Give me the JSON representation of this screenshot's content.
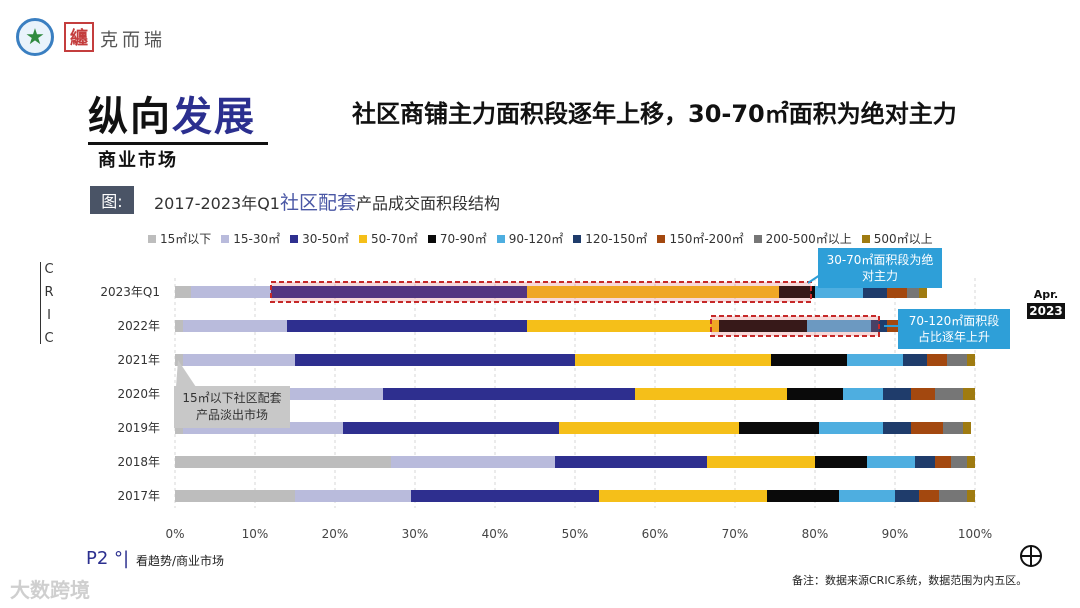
{
  "brand": {
    "logo_text": "纏",
    "name": "克而瑞"
  },
  "title": {
    "part1": "纵向",
    "part2": "发展",
    "subtitle": "商业市场"
  },
  "headline": "社区商铺主力面积段逐年上移，30-70㎡面积为绝对主力",
  "figure": {
    "label": "图:",
    "title_prefix": "2017-2023年Q1",
    "title_highlight": "社区配套",
    "title_suffix": "产品成交面积段结构"
  },
  "side_text": {
    "cric": [
      "C",
      "R",
      "I",
      "C"
    ],
    "apr": "Apr.",
    "year": "2023"
  },
  "callouts": {
    "c1": "30-70㎡面积段为绝对主力",
    "c2": "70-120㎡面积段占比逐年上升",
    "c3": "15㎡以下社区配套产品淡出市场"
  },
  "footer": {
    "page": "P2 °|",
    "caption": "看趋势/商业市场",
    "note": "备注：数据来源CRIC系统，数据范围为内五区。",
    "watermark": "大数跨境"
  },
  "colors": {
    "15㎡以下": "#bdbdbd",
    "15-30㎡": "#b9bbdc",
    "30-50㎡": "#2e2f8f",
    "50-70㎡": "#f5bf19",
    "70-90㎡": "#0a0a0a",
    "90-120㎡": "#4eaee0",
    "120-150㎡": "#1f3c6b",
    "150㎡-200㎡": "#a3480f",
    "200-500㎡以上": "#767676",
    "500㎡以上": "#9f7b11"
  },
  "chart_data": {
    "type": "bar",
    "orientation": "horizontal-stacked-100",
    "categories": [
      "2023年Q1",
      "2022年",
      "2021年",
      "2020年",
      "2019年",
      "2018年",
      "2017年"
    ],
    "series": [
      {
        "name": "15㎡以下",
        "values": [
          2,
          1,
          1,
          1,
          1,
          27,
          15
        ]
      },
      {
        "name": "15-30㎡",
        "values": [
          10,
          13,
          14,
          25,
          20,
          20.5,
          14.5
        ]
      },
      {
        "name": "30-50㎡",
        "values": [
          32,
          30,
          35,
          31.5,
          27,
          19,
          23.5
        ]
      },
      {
        "name": "50-70㎡",
        "values": [
          31.5,
          24,
          24.5,
          19,
          22.5,
          13.5,
          21
        ]
      },
      {
        "name": "70-90㎡",
        "values": [
          4.5,
          11,
          9.5,
          7,
          10,
          6.5,
          9
        ]
      },
      {
        "name": "90-120㎡",
        "values": [
          6,
          8,
          7,
          5,
          8,
          6,
          7
        ]
      },
      {
        "name": "120-150㎡",
        "values": [
          3,
          2,
          3,
          3.5,
          3.5,
          2.5,
          3
        ]
      },
      {
        "name": "150㎡-200㎡",
        "values": [
          2.5,
          1.5,
          2.5,
          3,
          4,
          2,
          2.5
        ]
      },
      {
        "name": "200-500㎡以上",
        "values": [
          1.5,
          1.5,
          2.5,
          3.5,
          2.5,
          2,
          3.5
        ]
      },
      {
        "name": "500㎡以上",
        "values": [
          1,
          1,
          1,
          1.5,
          1,
          1,
          1
        ]
      }
    ],
    "x_ticks": [
      "0%",
      "10%",
      "20%",
      "30%",
      "40%",
      "50%",
      "60%",
      "70%",
      "80%",
      "90%",
      "100%"
    ],
    "xlim": [
      0,
      100
    ],
    "legend_position": "top",
    "highlights": [
      {
        "category": "2023年Q1",
        "from": 12,
        "to": 79.5
      },
      {
        "category": "2022年",
        "from": 67,
        "to": 88
      }
    ]
  }
}
